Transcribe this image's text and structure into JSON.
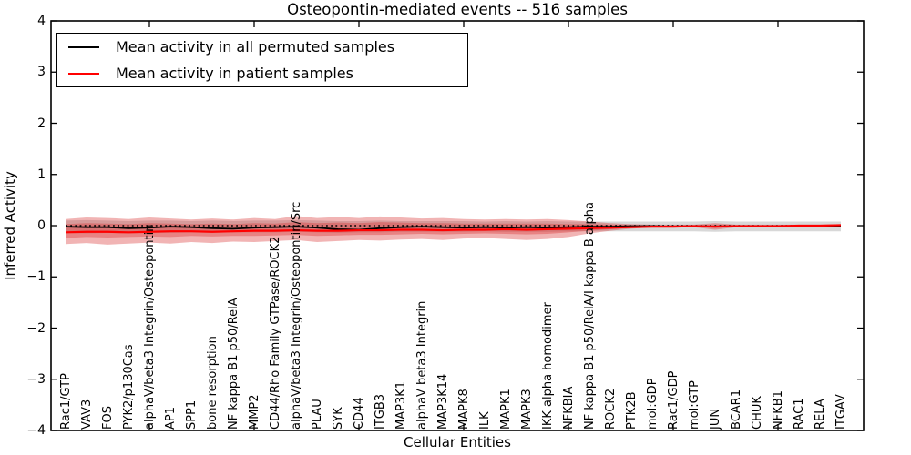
{
  "title": "Osteopontin-mediated events -- 516 samples",
  "axes": {
    "ylabel": "Inferred Activity",
    "xlabel": "Cellular Entities"
  },
  "legend": {
    "items": [
      {
        "label": "Mean activity in all permuted samples",
        "color": "#000000"
      },
      {
        "label": "Mean activity in patient samples",
        "color": "#ff0000"
      }
    ],
    "position": "upper left"
  },
  "chart_data": {
    "type": "line",
    "title": "Osteopontin-mediated events -- 516 samples",
    "xlabel": "Cellular Entities",
    "ylabel": "Inferred Activity",
    "ylim": [
      -4,
      4
    ],
    "grid": false,
    "legend_position": "upper left",
    "ytick_values": [
      4,
      3,
      2,
      1,
      0,
      -1,
      -2,
      -3,
      -4
    ],
    "ytick_labels": [
      "4",
      "3",
      "2",
      "1",
      "0",
      "−1",
      "−2",
      "−3",
      "−4"
    ],
    "categories": [
      "Rac1/GTP",
      "VAV3",
      "FOS",
      "PYK2/p130Cas",
      "alphaV/beta3 Integrin/Osteopontin",
      "AP1",
      "SPP1",
      "bone resorption",
      "NF kappa B1 p50/RelA",
      "MMP2",
      "CD44/Rho Family GTPase/ROCK2",
      "alphaV/beta3 Integrin/Osteopontin/Src",
      "PLAU",
      "SYK",
      "CD44",
      "ITGB3",
      "MAP3K1",
      "alphaV beta3 Integrin",
      "MAP3K14",
      "MAPK8",
      "ILK",
      "MAPK1",
      "MAPK3",
      "IKK alpha homodimer",
      "NFKBIA",
      "NF kappa B1 p50/RelA/I kappa B alpha",
      "ROCK2",
      "PTK2B",
      "mol:GDP",
      "Rac1/GDP",
      "mol:GTP",
      "JUN",
      "BCAR1",
      "CHUK",
      "NFKB1",
      "RAC1",
      "RELA",
      "ITGAV"
    ],
    "zero_line": {
      "value": 0,
      "style": "dotted",
      "color": "#000000"
    },
    "series": [
      {
        "name": "Mean activity in all permuted samples",
        "color": "#000000",
        "values": [
          -0.02,
          -0.03,
          -0.03,
          -0.05,
          -0.04,
          -0.02,
          -0.03,
          -0.05,
          -0.06,
          -0.04,
          -0.03,
          -0.02,
          -0.04,
          -0.07,
          -0.08,
          -0.05,
          -0.03,
          -0.02,
          -0.03,
          -0.04,
          -0.03,
          -0.04,
          -0.03,
          -0.04,
          -0.03,
          -0.02,
          -0.02,
          -0.01,
          -0.01,
          -0.02,
          -0.01,
          -0.02,
          -0.01,
          -0.01,
          -0.01,
          -0.01,
          -0.01,
          -0.01
        ]
      },
      {
        "name": "Mean activity in patient samples",
        "color": "#ff0000",
        "values": [
          -0.13,
          -0.12,
          -0.12,
          -0.13,
          -0.12,
          -0.11,
          -0.11,
          -0.12,
          -0.11,
          -0.1,
          -0.1,
          -0.09,
          -0.1,
          -0.1,
          -0.09,
          -0.09,
          -0.08,
          -0.08,
          -0.09,
          -0.08,
          -0.08,
          -0.07,
          -0.08,
          -0.07,
          -0.06,
          -0.05,
          -0.04,
          -0.03,
          -0.02,
          -0.02,
          -0.01,
          -0.02,
          -0.01,
          -0.01,
          -0.01,
          0.0,
          0.0,
          0.01
        ]
      }
    ],
    "bands": [
      {
        "name": "permuted-samples-range",
        "color": "rgba(100,100,100,0.25)",
        "upper": [
          0.1,
          0.11,
          0.1,
          0.09,
          0.1,
          0.1,
          0.09,
          0.1,
          0.09,
          0.1,
          0.1,
          0.11,
          0.1,
          0.09,
          0.09,
          0.1,
          0.09,
          0.09,
          0.09,
          0.09,
          0.08,
          0.09,
          0.08,
          0.09,
          0.08,
          0.08,
          0.08,
          0.08,
          0.08,
          0.08,
          0.08,
          0.09,
          0.08,
          0.08,
          0.08,
          0.08,
          0.08,
          0.08
        ],
        "lower": [
          -0.14,
          -0.15,
          -0.14,
          -0.15,
          -0.14,
          -0.14,
          -0.13,
          -0.14,
          -0.13,
          -0.13,
          -0.13,
          -0.12,
          -0.13,
          -0.14,
          -0.13,
          -0.13,
          -0.12,
          -0.12,
          -0.12,
          -0.12,
          -0.11,
          -0.12,
          -0.12,
          -0.12,
          -0.11,
          -0.11,
          -0.11,
          -0.11,
          -0.11,
          -0.11,
          -0.11,
          -0.12,
          -0.11,
          -0.11,
          -0.11,
          -0.11,
          -0.11,
          -0.11
        ]
      },
      {
        "name": "patient-samples-range-outer",
        "color": "rgba(214,39,40,0.35)",
        "upper": [
          0.13,
          0.16,
          0.15,
          0.13,
          0.16,
          0.14,
          0.12,
          0.14,
          0.12,
          0.15,
          0.13,
          0.19,
          0.15,
          0.17,
          0.15,
          0.18,
          0.16,
          0.14,
          0.15,
          0.13,
          0.12,
          0.13,
          0.12,
          0.13,
          0.11,
          0.08,
          0.05,
          0.03,
          0.02,
          0.02,
          0.02,
          0.05,
          0.02,
          0.02,
          0.02,
          0.02,
          0.02,
          0.03
        ],
        "lower": [
          -0.36,
          -0.34,
          -0.37,
          -0.35,
          -0.33,
          -0.35,
          -0.32,
          -0.34,
          -0.31,
          -0.32,
          -0.3,
          -0.28,
          -0.32,
          -0.3,
          -0.28,
          -0.29,
          -0.27,
          -0.26,
          -0.28,
          -0.25,
          -0.24,
          -0.26,
          -0.28,
          -0.26,
          -0.22,
          -0.15,
          -0.1,
          -0.06,
          -0.03,
          -0.03,
          -0.03,
          -0.08,
          -0.03,
          -0.03,
          -0.02,
          -0.02,
          -0.02,
          -0.03
        ]
      },
      {
        "name": "patient-samples-range-inner",
        "color": "rgba(214,39,40,0.35)",
        "upper": [
          0.03,
          0.05,
          0.04,
          0.03,
          0.05,
          0.04,
          0.03,
          0.04,
          0.03,
          0.05,
          0.04,
          0.07,
          0.05,
          0.06,
          0.05,
          0.07,
          0.06,
          0.05,
          0.05,
          0.04,
          0.04,
          0.04,
          0.04,
          0.04,
          0.03,
          0.03,
          0.02,
          0.01,
          0.01,
          0.01,
          0.01,
          0.02,
          0.01,
          0.01,
          0.01,
          0.01,
          0.01,
          0.01
        ],
        "lower": [
          -0.24,
          -0.22,
          -0.23,
          -0.22,
          -0.21,
          -0.22,
          -0.2,
          -0.21,
          -0.2,
          -0.2,
          -0.19,
          -0.18,
          -0.2,
          -0.19,
          -0.18,
          -0.18,
          -0.17,
          -0.16,
          -0.17,
          -0.16,
          -0.15,
          -0.16,
          -0.17,
          -0.16,
          -0.13,
          -0.1,
          -0.07,
          -0.04,
          -0.02,
          -0.02,
          -0.02,
          -0.04,
          -0.02,
          -0.02,
          -0.01,
          -0.01,
          -0.01,
          -0.02
        ]
      }
    ]
  }
}
